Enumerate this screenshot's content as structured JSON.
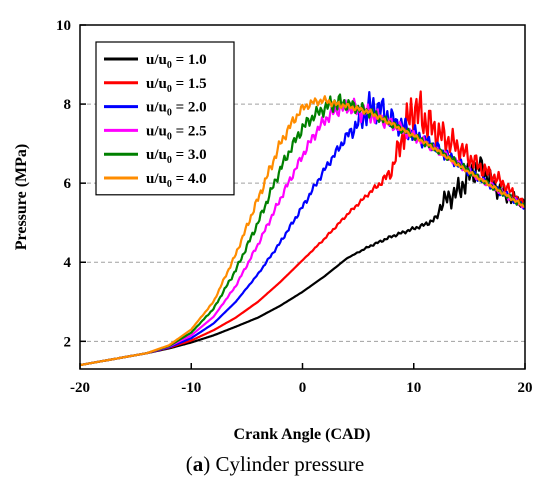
{
  "caption": {
    "prefix": "(",
    "letter": "a",
    "text": ") Cylinder pressure"
  },
  "chart_data": {
    "type": "line",
    "title": "",
    "xlabel": "Crank Angle (CAD)",
    "ylabel": "Pressure (MPa)",
    "xlim": [
      -20,
      20
    ],
    "ylim": [
      1.3,
      10
    ],
    "xticks": [
      -20,
      -10,
      0,
      10,
      20
    ],
    "yticks": [
      2,
      4,
      6,
      8,
      10
    ],
    "grid": "horizontal dashed at 4, 6, 8",
    "legend_position": "top-left",
    "series": [
      {
        "name": "u/u0 = 1.0",
        "label_main": "u/u",
        "label_sub": "0",
        "label_tail": " = 1.0",
        "color": "#000000",
        "x": [
          -20,
          -16,
          -14,
          -12,
          -10,
          -8,
          -6,
          -4,
          -2,
          0,
          2,
          4,
          6,
          8,
          10,
          11,
          12,
          12.5,
          13,
          14,
          15,
          16,
          17,
          18,
          19,
          20
        ],
        "y": [
          1.4,
          1.6,
          1.7,
          1.82,
          1.97,
          2.15,
          2.37,
          2.6,
          2.9,
          3.25,
          3.65,
          4.1,
          4.4,
          4.65,
          4.85,
          4.95,
          5.1,
          5.5,
          5.6,
          5.8,
          6.2,
          6.45,
          6.0,
          5.75,
          5.6,
          5.5
        ],
        "noise": [
          0,
          0,
          0,
          0,
          0,
          0,
          0,
          0,
          0,
          0,
          0,
          0,
          0.03,
          0.04,
          0.05,
          0.06,
          0.1,
          0.25,
          0.3,
          0.35,
          0.45,
          0.3,
          0.3,
          0.25,
          0.2,
          0.15
        ]
      },
      {
        "name": "u/u0 = 1.5",
        "label_main": "u/u",
        "label_sub": "0",
        "label_tail": " = 1.5",
        "color": "#ff0000",
        "x": [
          -20,
          -16,
          -14,
          -12,
          -10,
          -8,
          -6,
          -4,
          -2,
          0,
          2,
          4,
          6,
          7,
          8,
          9,
          10,
          11,
          12,
          14,
          16,
          18,
          20
        ],
        "y": [
          1.4,
          1.6,
          1.7,
          1.84,
          2.02,
          2.28,
          2.6,
          3.0,
          3.5,
          4.05,
          4.6,
          5.2,
          5.75,
          6.0,
          6.3,
          7.2,
          7.9,
          7.6,
          7.3,
          6.9,
          6.4,
          6.0,
          5.4
        ],
        "noise": [
          0,
          0,
          0,
          0,
          0,
          0,
          0,
          0,
          0,
          0,
          0.03,
          0.04,
          0.06,
          0.1,
          0.2,
          0.5,
          0.8,
          0.6,
          0.5,
          0.35,
          0.25,
          0.2,
          0.15
        ]
      },
      {
        "name": "u/u0 = 2.0",
        "label_main": "u/u",
        "label_sub": "0",
        "label_tail": " = 2.0",
        "color": "#0000ff",
        "x": [
          -20,
          -16,
          -14,
          -12,
          -10,
          -8,
          -6,
          -4,
          -2,
          0,
          2,
          4,
          5,
          6,
          7,
          8,
          10,
          12,
          14,
          16,
          18,
          20
        ],
        "y": [
          1.4,
          1.6,
          1.7,
          1.85,
          2.08,
          2.45,
          3.0,
          3.7,
          4.5,
          5.4,
          6.35,
          7.2,
          7.5,
          7.9,
          7.9,
          7.6,
          7.25,
          6.9,
          6.5,
          6.1,
          5.75,
          5.4
        ],
        "noise": [
          0,
          0,
          0,
          0,
          0,
          0,
          0,
          0.02,
          0.05,
          0.08,
          0.1,
          0.15,
          0.3,
          0.45,
          0.4,
          0.35,
          0.25,
          0.2,
          0.15,
          0.12,
          0.1,
          0.08
        ]
      },
      {
        "name": "u/u0 = 2.5",
        "label_main": "u/u",
        "label_sub": "0",
        "label_tail": " = 2.5",
        "color": "#ff00ff",
        "x": [
          -20,
          -16,
          -14,
          -12,
          -10,
          -8,
          -6,
          -4,
          -2,
          0,
          1,
          2,
          3,
          4,
          5,
          6,
          8,
          10,
          12,
          14,
          16,
          18,
          20
        ],
        "y": [
          1.4,
          1.6,
          1.7,
          1.87,
          2.15,
          2.62,
          3.4,
          4.45,
          5.6,
          6.7,
          7.2,
          7.6,
          7.85,
          7.95,
          7.85,
          7.75,
          7.5,
          7.2,
          6.85,
          6.5,
          6.1,
          5.75,
          5.4
        ],
        "noise": [
          0,
          0,
          0,
          0,
          0,
          0,
          0.03,
          0.06,
          0.1,
          0.12,
          0.15,
          0.18,
          0.2,
          0.25,
          0.3,
          0.25,
          0.2,
          0.15,
          0.12,
          0.1,
          0.1,
          0.08,
          0.08
        ]
      },
      {
        "name": "u/u0 = 3.0",
        "label_main": "u/u",
        "label_sub": "0",
        "label_tail": " = 3.0",
        "color": "#008000",
        "x": [
          -20,
          -16,
          -14,
          -12,
          -10,
          -8,
          -6,
          -4,
          -2,
          -1,
          0,
          1,
          2,
          3,
          4,
          6,
          8,
          10,
          12,
          14,
          16,
          18,
          20
        ],
        "y": [
          1.4,
          1.6,
          1.7,
          1.88,
          2.22,
          2.82,
          3.8,
          5.0,
          6.35,
          6.9,
          7.4,
          7.7,
          7.9,
          8.05,
          8.0,
          7.8,
          7.5,
          7.2,
          6.85,
          6.5,
          6.1,
          5.75,
          5.4
        ],
        "noise": [
          0,
          0,
          0,
          0,
          0,
          0.02,
          0.06,
          0.1,
          0.15,
          0.15,
          0.18,
          0.18,
          0.2,
          0.3,
          0.2,
          0.15,
          0.12,
          0.1,
          0.1,
          0.1,
          0.08,
          0.08,
          0.08
        ]
      },
      {
        "name": "u/u0 = 4.0",
        "label_main": "u/u",
        "label_sub": "0",
        "label_tail": " = 4.0",
        "color": "#ff8c00",
        "x": [
          -20,
          -16,
          -14,
          -12,
          -10,
          -8,
          -6,
          -4,
          -3,
          -2,
          -1,
          0,
          1,
          2,
          3,
          4,
          6,
          8,
          10,
          12,
          14,
          16,
          18,
          20
        ],
        "y": [
          1.4,
          1.6,
          1.7,
          1.9,
          2.3,
          3.0,
          4.2,
          5.6,
          6.3,
          7.0,
          7.5,
          7.9,
          8.05,
          8.1,
          8.0,
          7.95,
          7.8,
          7.5,
          7.2,
          6.85,
          6.45,
          6.1,
          5.75,
          5.4
        ],
        "noise": [
          0,
          0,
          0,
          0,
          0,
          0.02,
          0.06,
          0.12,
          0.15,
          0.15,
          0.15,
          0.12,
          0.12,
          0.1,
          0.1,
          0.08,
          0.08,
          0.06,
          0.06,
          0.05,
          0.05,
          0.05,
          0.05,
          0.05
        ]
      }
    ]
  }
}
